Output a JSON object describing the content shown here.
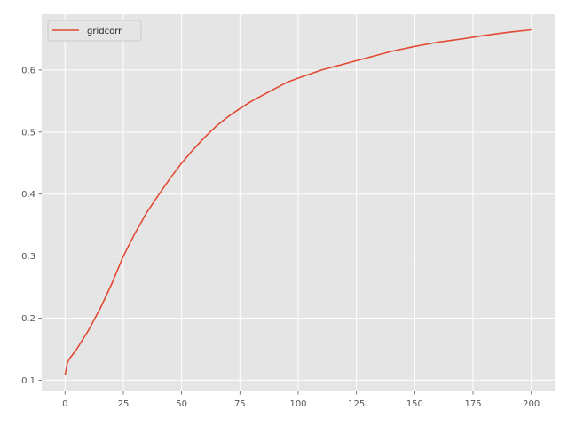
{
  "chart_data": {
    "type": "line",
    "title": "",
    "xlabel": "",
    "ylabel": "",
    "xlim": [
      -10,
      210
    ],
    "ylim": [
      0.082,
      0.69
    ],
    "xticks": [
      0,
      25,
      50,
      75,
      100,
      125,
      150,
      175,
      200
    ],
    "yticks": [
      0.1,
      0.2,
      0.3,
      0.4,
      0.5,
      0.6
    ],
    "xtick_labels": [
      "0",
      "25",
      "50",
      "75",
      "100",
      "125",
      "150",
      "175",
      "200"
    ],
    "ytick_labels": [
      "0.1",
      "0.2",
      "0.3",
      "0.4",
      "0.5",
      "0.6"
    ],
    "grid": true,
    "legend_position": "top-left",
    "colors": {
      "background": "#e5e5e5",
      "grid": "#ffffff",
      "line": "#e24a33"
    },
    "series": [
      {
        "name": "gridcorr",
        "x": [
          0,
          1,
          2,
          5,
          10,
          15,
          20,
          25,
          30,
          35,
          40,
          45,
          50,
          55,
          60,
          65,
          70,
          75,
          80,
          85,
          90,
          95,
          100,
          110,
          120,
          130,
          140,
          150,
          160,
          170,
          180,
          190,
          200
        ],
        "y": [
          0.108,
          0.128,
          0.135,
          0.15,
          0.18,
          0.215,
          0.255,
          0.3,
          0.337,
          0.37,
          0.398,
          0.425,
          0.45,
          0.472,
          0.492,
          0.51,
          0.525,
          0.538,
          0.55,
          0.56,
          0.57,
          0.58,
          0.587,
          0.6,
          0.61,
          0.62,
          0.63,
          0.638,
          0.645,
          0.65,
          0.656,
          0.661,
          0.665
        ]
      }
    ]
  }
}
